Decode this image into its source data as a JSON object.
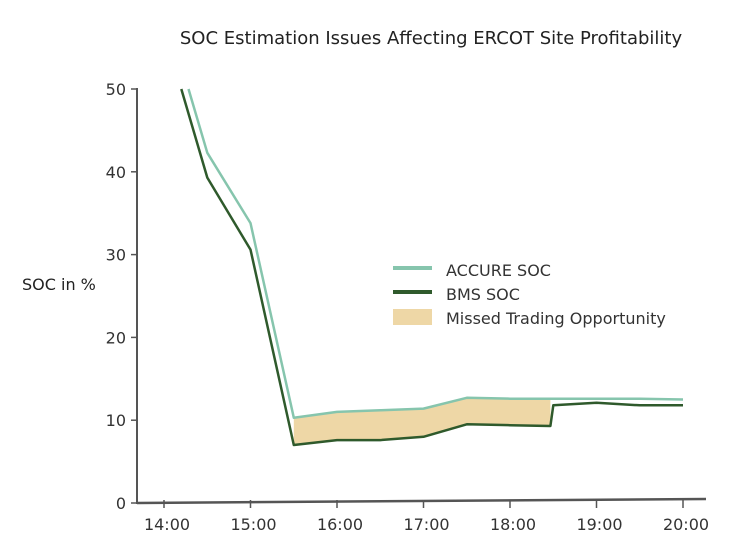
{
  "chart_data": {
    "type": "line",
    "title": "SOC Estimation Issues Affecting ERCOT Site Profitability",
    "xlabel": "",
    "ylabel": "SOC in %",
    "xlim": [
      "14:00",
      "20:00"
    ],
    "ylim": [
      0,
      50
    ],
    "x_ticks": [
      "14:00",
      "15:00",
      "16:00",
      "17:00",
      "18:00",
      "19:00",
      "20:00"
    ],
    "y_ticks": [
      0,
      10,
      20,
      30,
      40,
      50
    ],
    "grid": false,
    "legend_position": "center-right",
    "series": [
      {
        "name": "ACCURE SOC",
        "color": "#86c5ad",
        "x": [
          "14:17",
          "14:30",
          "15:00",
          "15:30",
          "16:00",
          "16:30",
          "17:00",
          "17:30",
          "18:00",
          "18:30",
          "19:00",
          "19:30",
          "20:00"
        ],
        "y": [
          50,
          42.3,
          33.8,
          10.3,
          11.0,
          11.2,
          11.4,
          12.7,
          12.6,
          12.6,
          12.6,
          12.6,
          12.5
        ]
      },
      {
        "name": "BMS SOC",
        "color": "#2f5a2c",
        "x": [
          "14:12",
          "14:30",
          "15:00",
          "15:30",
          "16:00",
          "16:30",
          "17:00",
          "17:30",
          "18:00",
          "18:28",
          "18:30",
          "19:00",
          "19:30",
          "20:00"
        ],
        "y": [
          50,
          39.3,
          30.6,
          7.0,
          7.6,
          7.6,
          8.0,
          9.5,
          9.4,
          9.3,
          11.8,
          12.1,
          11.8,
          11.8
        ]
      }
    ],
    "shaded_region": {
      "name": "Missed Trading Opportunity",
      "color": "#eed7a6",
      "x_range": [
        "15:30",
        "18:28"
      ]
    }
  }
}
